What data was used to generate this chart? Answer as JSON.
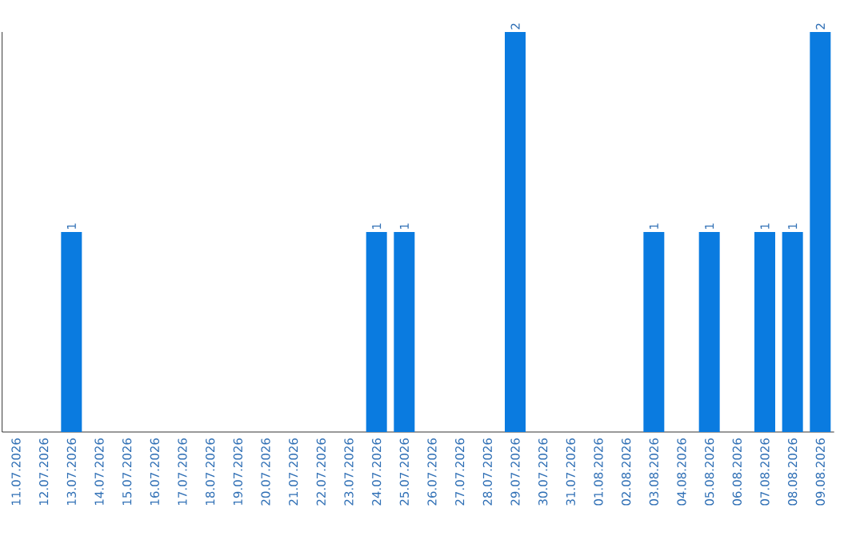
{
  "chart_data": {
    "type": "bar",
    "categories": [
      "11.07.2026",
      "12.07.2026",
      "13.07.2026",
      "14.07.2026",
      "15.07.2026",
      "16.07.2026",
      "17.07.2026",
      "18.07.2026",
      "19.07.2026",
      "20.07.2026",
      "21.07.2026",
      "22.07.2026",
      "23.07.2026",
      "24.07.2026",
      "25.07.2026",
      "26.07.2026",
      "27.07.2026",
      "28.07.2026",
      "29.07.2026",
      "30.07.2026",
      "31.07.2026",
      "01.08.2026",
      "02.08.2026",
      "03.08.2026",
      "04.08.2026",
      "05.08.2026",
      "06.08.2026",
      "07.08.2026",
      "08.08.2026",
      "09.08.2026"
    ],
    "values": [
      0,
      0,
      1,
      0,
      0,
      0,
      0,
      0,
      0,
      0,
      0,
      0,
      0,
      1,
      1,
      0,
      0,
      0,
      2,
      0,
      0,
      0,
      0,
      1,
      0,
      1,
      0,
      1,
      1,
      2
    ],
    "value_labels": [
      null,
      null,
      "1",
      null,
      null,
      null,
      null,
      null,
      null,
      null,
      null,
      null,
      null,
      "1",
      "1",
      null,
      null,
      null,
      "2",
      null,
      null,
      null,
      null,
      "1",
      null,
      "1",
      null,
      "1",
      "1",
      "2"
    ],
    "color": "#0a7be0",
    "ylim": [
      0,
      2
    ],
    "tick_labels": "x"
  }
}
